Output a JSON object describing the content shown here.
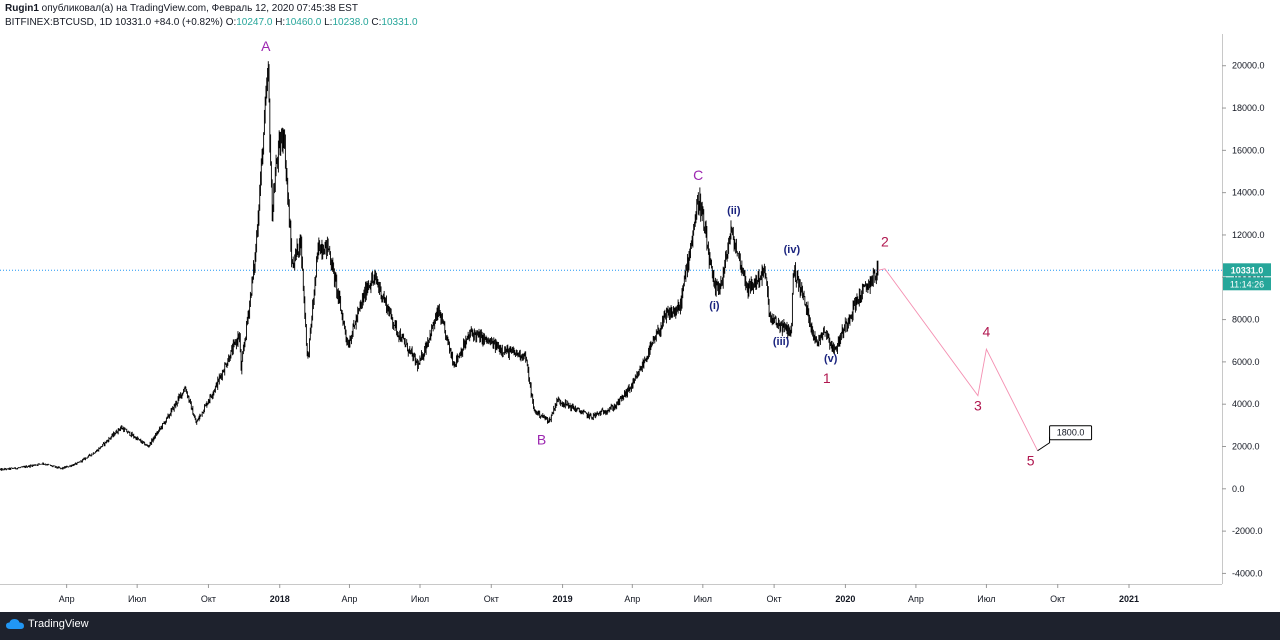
{
  "header": {
    "author": "Rugin1",
    "published": "опубликовал(а) на TradingView.com, Февраль 12, 2020 07:45:38 EST",
    "symbol": "BITFINEX:BTCUSD, 1D",
    "last": "10331.0",
    "change": "+84.0 (+0.82%)",
    "o_label": "O:",
    "o": "10247.0",
    "h_label": "H:",
    "h": "10460.0",
    "l_label": "L:",
    "l": "10238.0",
    "c_label": "C:",
    "c": "10331.0"
  },
  "price_axis": {
    "last_price_label": "10331.0",
    "countdown": "11:14:26"
  },
  "footer": {
    "brand": "TradingView"
  },
  "colors": {
    "candle": "#000000",
    "price_line": "#2196f3",
    "last_price_bg": "#26a69a",
    "wave_major": "#9c27b0",
    "wave_minor": "#1a237e",
    "wave_projection": "#b0174f",
    "projection_path": "#f48fb1"
  },
  "chart_data": {
    "type": "candlestick",
    "symbol": "BITFINEX:BTCUSD",
    "timeframe": "1D",
    "y_unit": "USD",
    "ylim": [
      -4500,
      21500
    ],
    "xlim": [
      "2017-01-05",
      "2021-05-01"
    ],
    "y_ticks": [
      "20000.0",
      "18000.0",
      "16000.0",
      "14000.0",
      "12000.0",
      "10000.0",
      "8000.0",
      "6000.0",
      "4000.0",
      "2000.0",
      "0.0",
      "-2000.0",
      "-4000.0"
    ],
    "x_ticks": [
      {
        "date": "2017-04-01",
        "label": "Апр",
        "bold": false
      },
      {
        "date": "2017-07-01",
        "label": "Июл",
        "bold": false
      },
      {
        "date": "2017-10-01",
        "label": "Окт",
        "bold": false
      },
      {
        "date": "2018-01-01",
        "label": "2018",
        "bold": true
      },
      {
        "date": "2018-04-01",
        "label": "Апр",
        "bold": false
      },
      {
        "date": "2018-07-01",
        "label": "Июл",
        "bold": false
      },
      {
        "date": "2018-10-01",
        "label": "Окт",
        "bold": false
      },
      {
        "date": "2019-01-01",
        "label": "2019",
        "bold": true
      },
      {
        "date": "2019-04-01",
        "label": "Апр",
        "bold": false
      },
      {
        "date": "2019-07-01",
        "label": "Июл",
        "bold": false
      },
      {
        "date": "2019-10-01",
        "label": "Окт",
        "bold": false
      },
      {
        "date": "2020-01-01",
        "label": "2020",
        "bold": true
      },
      {
        "date": "2020-04-01",
        "label": "Апр",
        "bold": false
      },
      {
        "date": "2020-07-01",
        "label": "Июл",
        "bold": false
      },
      {
        "date": "2020-10-01",
        "label": "Окт",
        "bold": false
      },
      {
        "date": "2021-01-01",
        "label": "2021",
        "bold": true
      }
    ],
    "price_path": [
      [
        "2017-01-05",
        900
      ],
      [
        "2017-02-01",
        1000
      ],
      [
        "2017-03-01",
        1200
      ],
      [
        "2017-03-25",
        950
      ],
      [
        "2017-04-15",
        1200
      ],
      [
        "2017-05-10",
        1800
      ],
      [
        "2017-06-10",
        2900
      ],
      [
        "2017-07-15",
        2000
      ],
      [
        "2017-08-10",
        3400
      ],
      [
        "2017-09-01",
        4800
      ],
      [
        "2017-09-15",
        3100
      ],
      [
        "2017-10-10",
        4800
      ],
      [
        "2017-11-10",
        7300
      ],
      [
        "2017-11-12",
        5600
      ],
      [
        "2017-11-30",
        10800
      ],
      [
        "2017-12-17",
        19800
      ],
      [
        "2017-12-22",
        13000
      ],
      [
        "2017-12-28",
        15500
      ],
      [
        "2018-01-06",
        17000
      ],
      [
        "2018-01-17",
        10500
      ],
      [
        "2018-01-28",
        11800
      ],
      [
        "2018-02-06",
        6000
      ],
      [
        "2018-02-20",
        11500
      ],
      [
        "2018-03-05",
        11400
      ],
      [
        "2018-03-30",
        6800
      ],
      [
        "2018-04-25",
        9700
      ],
      [
        "2018-05-05",
        9900
      ],
      [
        "2018-06-01",
        7500
      ],
      [
        "2018-06-29",
        5800
      ],
      [
        "2018-07-25",
        8400
      ],
      [
        "2018-08-14",
        5900
      ],
      [
        "2018-09-05",
        7400
      ],
      [
        "2018-10-20",
        6500
      ],
      [
        "2018-11-14",
        6300
      ],
      [
        "2018-11-25",
        3700
      ],
      [
        "2018-12-15",
        3200
      ],
      [
        "2018-12-25",
        4200
      ],
      [
        "2019-02-07",
        3400
      ],
      [
        "2019-03-10",
        3900
      ],
      [
        "2019-04-03",
        5000
      ],
      [
        "2019-05-15",
        8200
      ],
      [
        "2019-06-01",
        8500
      ],
      [
        "2019-06-26",
        13800
      ],
      [
        "2019-07-16",
        9400
      ],
      [
        "2019-07-26",
        9800
      ],
      [
        "2019-08-06",
        12200
      ],
      [
        "2019-08-29",
        9400
      ],
      [
        "2019-09-19",
        10300
      ],
      [
        "2019-09-26",
        8000
      ],
      [
        "2019-10-23",
        7400
      ],
      [
        "2019-10-26",
        10400
      ],
      [
        "2019-11-05",
        9400
      ],
      [
        "2019-11-25",
        6800
      ],
      [
        "2019-12-04",
        7600
      ],
      [
        "2019-12-18",
        6500
      ],
      [
        "2019-12-27",
        7300
      ],
      [
        "2020-01-14",
        8800
      ],
      [
        "2020-02-12",
        10331
      ]
    ],
    "candle_count": 1130,
    "last_price": 10331.0,
    "projection": [
      [
        "2020-02-12",
        10331
      ],
      [
        "2020-02-21",
        10400
      ],
      [
        "2020-06-20",
        4400
      ],
      [
        "2020-07-01",
        6600
      ],
      [
        "2020-09-05",
        1800
      ]
    ],
    "target_label": {
      "date": "2020-09-05",
      "price": 1800,
      "text": "1800.0"
    },
    "wave_labels": [
      {
        "text": "A",
        "date": "2017-12-14",
        "price": 20700,
        "group": "major"
      },
      {
        "text": "B",
        "date": "2018-12-05",
        "price": 2100,
        "group": "major"
      },
      {
        "text": "C",
        "date": "2019-06-25",
        "price": 14600,
        "group": "major"
      },
      {
        "text": "(i)",
        "date": "2019-07-16",
        "price": 8500,
        "group": "minor"
      },
      {
        "text": "(ii)",
        "date": "2019-08-10",
        "price": 13000,
        "group": "minor"
      },
      {
        "text": "(iii)",
        "date": "2019-10-10",
        "price": 6800,
        "group": "minor"
      },
      {
        "text": "(iv)",
        "date": "2019-10-24",
        "price": 11150,
        "group": "minor"
      },
      {
        "text": "(v)",
        "date": "2019-12-13",
        "price": 6000,
        "group": "minor"
      },
      {
        "text": "1",
        "date": "2019-12-08",
        "price": 5000,
        "group": "projection"
      },
      {
        "text": "2",
        "date": "2020-02-21",
        "price": 11450,
        "group": "projection"
      },
      {
        "text": "3",
        "date": "2020-06-20",
        "price": 3700,
        "group": "projection"
      },
      {
        "text": "4",
        "date": "2020-07-01",
        "price": 7200,
        "group": "projection"
      },
      {
        "text": "5",
        "date": "2020-08-27",
        "price": 1100,
        "group": "projection"
      }
    ]
  }
}
